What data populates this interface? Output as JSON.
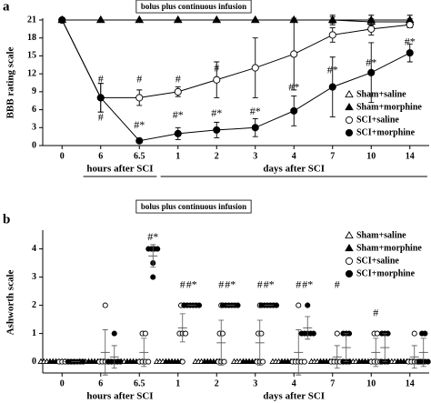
{
  "chart_data": [
    {
      "type": "line",
      "panel": "a",
      "note": "bolus plus continuous infusion",
      "ylabel": "BBB rating scale",
      "categories": [
        "0",
        "6",
        "6.5",
        "1",
        "2",
        "3",
        "4",
        "7",
        "10",
        "14"
      ],
      "x_groups": [
        {
          "label": "hours after SCI",
          "from": "6",
          "to": "6.5"
        },
        {
          "label": "days after SCI",
          "from": "1",
          "to": "14"
        }
      ],
      "ylim": [
        0,
        21
      ],
      "yticks": [
        0,
        3,
        6,
        9,
        12,
        15,
        18,
        21
      ],
      "legend": "lower right",
      "series": [
        {
          "name": "Sham+saline",
          "color": "#000000",
          "marker": "triangle",
          "filled": false,
          "values": [
            21,
            21,
            21,
            21,
            21,
            21,
            21,
            21,
            20.7,
            20.7
          ],
          "errors": [
            0,
            0,
            0,
            0,
            0,
            0,
            0,
            0.5,
            0.5,
            0.5
          ]
        },
        {
          "name": "Sham+morphine",
          "color": "#000000",
          "marker": "triangle",
          "filled": true,
          "values": [
            21,
            21,
            21,
            21,
            21,
            21,
            21,
            21,
            21,
            21
          ],
          "errors": [
            0,
            0,
            0,
            0,
            0,
            0,
            0,
            0.8,
            0.8,
            0.8
          ]
        },
        {
          "name": "SCI+saline",
          "color": "#000000",
          "marker": "circle",
          "filled": false,
          "values": [
            21,
            8,
            8,
            9,
            11,
            13,
            15.3,
            18.5,
            19.5,
            20.2
          ],
          "errors": [
            0,
            2.4,
            1.3,
            0.8,
            3,
            5,
            6,
            1.2,
            1,
            0.5
          ]
        },
        {
          "name": "SCI+morphine",
          "color": "#000000",
          "marker": "circle",
          "filled": true,
          "values": [
            21,
            8,
            0.8,
            2,
            2.6,
            3,
            5.8,
            9.8,
            12.2,
            15.5
          ],
          "errors": [
            0,
            2.4,
            0.3,
            1,
            1.3,
            1.5,
            2.5,
            5,
            5,
            1.5
          ]
        }
      ],
      "annotations": [
        {
          "text": "#",
          "x": "6",
          "y": 11
        },
        {
          "text": "#",
          "x": "6",
          "y": 4.6
        },
        {
          "text": "#",
          "x": "6.5",
          "y": 11
        },
        {
          "text": "#*",
          "x": "6.5",
          "y": 3.3
        },
        {
          "text": "#",
          "x": "1",
          "y": 11
        },
        {
          "text": "#*",
          "x": "1",
          "y": 5
        },
        {
          "text": "#",
          "x": "2",
          "y": 12.8
        },
        {
          "text": "#*",
          "x": "2",
          "y": 5.3
        },
        {
          "text": "#*",
          "x": "3",
          "y": 5.6
        },
        {
          "text": "#*",
          "x": "4",
          "y": 9.6
        },
        {
          "text": "#*",
          "x": "7",
          "y": 12.5
        },
        {
          "text": "#*",
          "x": "10",
          "y": 13.7
        },
        {
          "text": "#*",
          "x": "14",
          "y": 17.2
        }
      ]
    },
    {
      "type": "scatter",
      "panel": "b",
      "note": "bolus plus continuous infusion",
      "ylabel": "Ashworth scale",
      "categories": [
        "0",
        "6",
        "6.5",
        "1",
        "2",
        "3",
        "4",
        "7",
        "10",
        "14"
      ],
      "x_groups": [
        {
          "label": "hours after SCI",
          "from": "6",
          "to": "6.5"
        },
        {
          "label": "days after SCI",
          "from": "1",
          "to": "14"
        }
      ],
      "ylim": [
        -0.4,
        4.6
      ],
      "yticks": [
        0,
        1,
        2,
        3,
        4
      ],
      "legend": "upper right",
      "series": [
        {
          "name": "Sham+saline",
          "color": "#000000",
          "marker": "triangle",
          "filled": false,
          "values": [
            [
              0,
              0,
              0,
              0,
              0,
              0
            ],
            [
              0,
              0,
              0,
              0,
              0,
              0
            ],
            [
              0,
              0,
              0,
              0,
              0,
              0
            ],
            [
              0,
              0,
              0,
              0,
              0,
              0
            ],
            [
              0,
              0,
              0,
              0,
              0,
              0
            ],
            [
              0,
              0,
              0,
              0,
              0,
              0
            ],
            [
              0,
              0,
              0,
              0,
              0,
              0
            ],
            [
              0,
              0,
              0,
              0,
              0,
              0
            ],
            [
              0,
              0,
              0,
              0,
              0,
              0
            ],
            [
              0,
              0,
              0,
              0,
              0,
              0
            ]
          ]
        },
        {
          "name": "Sham+morphine",
          "color": "#000000",
          "marker": "triangle",
          "filled": true,
          "values": [
            [
              0,
              0,
              0,
              0,
              0,
              0
            ],
            [
              0,
              0,
              0,
              0,
              0,
              0
            ],
            [
              0,
              0,
              0,
              0,
              0,
              0
            ],
            [
              0,
              0,
              0,
              0,
              0,
              0
            ],
            [
              0,
              0,
              0,
              0,
              0,
              0
            ],
            [
              0,
              0,
              0,
              0,
              0,
              0
            ],
            [
              0,
              0,
              0,
              0,
              0,
              0
            ],
            [
              0,
              0,
              0,
              0,
              0,
              0
            ],
            [
              0,
              0,
              0,
              0,
              0,
              0
            ],
            [
              0,
              0,
              0,
              0,
              0,
              0
            ]
          ]
        },
        {
          "name": "SCI+saline",
          "color": "#000000",
          "marker": "circle",
          "filled": false,
          "values": [
            [
              0,
              0,
              0,
              0,
              0,
              0
            ],
            [
              2,
              0,
              0,
              0,
              0,
              0
            ],
            [
              1,
              1,
              0,
              0,
              0,
              0
            ],
            [
              2,
              2,
              1,
              1,
              1,
              0
            ],
            [
              2,
              1,
              1,
              0,
              0,
              0
            ],
            [
              2,
              1,
              1,
              0,
              0,
              0
            ],
            [
              2,
              0,
              0,
              0,
              0,
              0
            ],
            [
              1,
              0,
              0,
              0,
              0,
              0
            ],
            [
              1,
              1,
              0,
              0,
              0,
              0
            ],
            [
              1,
              0,
              0,
              0,
              0,
              0
            ]
          ],
          "mean": [
            0,
            0.33,
            0.33,
            1.2,
            0.67,
            0.67,
            0.33,
            0.17,
            0.33,
            0.17
          ],
          "error": [
            0,
            0.8,
            0.5,
            0.5,
            0.8,
            0.8,
            0.8,
            0.4,
            0.5,
            0.4
          ]
        },
        {
          "name": "SCI+morphine",
          "color": "#000000",
          "marker": "circle",
          "filled": true,
          "values": [
            [
              0,
              0,
              0,
              0,
              0,
              0
            ],
            [
              1,
              0,
              0,
              0,
              0,
              0
            ],
            [
              4,
              4,
              4,
              4,
              3.5,
              3
            ],
            [
              2,
              2,
              2,
              2,
              2,
              2
            ],
            [
              2,
              2,
              2,
              2,
              2,
              2
            ],
            [
              2,
              2,
              2,
              2,
              2,
              2
            ],
            [
              2,
              1,
              1,
              1,
              1,
              1
            ],
            [
              1,
              1,
              1,
              0,
              0,
              0
            ],
            [
              1,
              1,
              1,
              0,
              0,
              0
            ],
            [
              1,
              1,
              0,
              0,
              0,
              0
            ]
          ],
          "mean": [
            0,
            0.17,
            3.75,
            2,
            2,
            2,
            1.2,
            0.5,
            0.5,
            0.33
          ],
          "error": [
            0,
            0.4,
            0.4,
            0,
            0,
            0,
            0.4,
            0.5,
            0.5,
            0.5
          ]
        }
      ],
      "annotations": [
        {
          "text": "#*",
          "x": "6.5",
          "y": 4.4,
          "series": "SCI+morphine"
        },
        {
          "text": "#",
          "x": "1",
          "y": 2.7,
          "series": "SCI+saline"
        },
        {
          "text": "#*",
          "x": "1",
          "y": 2.7,
          "series": "SCI+morphine"
        },
        {
          "text": "#",
          "x": "2",
          "y": 2.7,
          "series": "SCI+saline"
        },
        {
          "text": "#*",
          "x": "2",
          "y": 2.7,
          "series": "SCI+morphine"
        },
        {
          "text": "#",
          "x": "3",
          "y": 2.7,
          "series": "SCI+saline"
        },
        {
          "text": "#*",
          "x": "3",
          "y": 2.7,
          "series": "SCI+morphine"
        },
        {
          "text": "#",
          "x": "4",
          "y": 2.7,
          "series": "SCI+saline"
        },
        {
          "text": "#*",
          "x": "4",
          "y": 2.7,
          "series": "SCI+morphine"
        },
        {
          "text": "#",
          "x": "7",
          "y": 2.7,
          "series": "SCI+saline"
        },
        {
          "text": "#",
          "x": "10",
          "y": 1.7,
          "series": "SCI+saline"
        }
      ]
    }
  ]
}
